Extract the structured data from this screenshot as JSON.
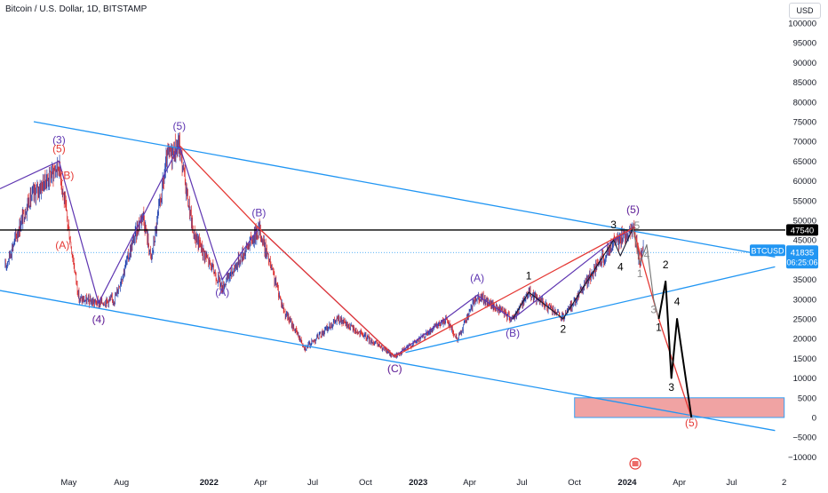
{
  "header": {
    "title": "Bitcoin / U.S. Dollar, 1D, BITSTAMP",
    "currency": "USD"
  },
  "colors": {
    "channel": "#2196f3",
    "red_wave": "#e53935",
    "purple_wave": "#5e35b1",
    "black": "#000000",
    "target_zone": "#ef9a9a",
    "candle_up": "#1e40af",
    "candle_down": "#dc2626",
    "label_bg": "#2196f3"
  },
  "chart_data": {
    "type": "line",
    "y_ticks": [
      "100000",
      "95000",
      "90000",
      "85000",
      "80000",
      "75000",
      "70000",
      "65000",
      "60000",
      "55000",
      "50000",
      "45000",
      "40000",
      "35000",
      "30000",
      "25000",
      "20000",
      "15000",
      "10000",
      "5000",
      "0",
      "−5000",
      "−10000"
    ],
    "x_ticks": [
      {
        "label": "May",
        "x": "2021-05-01",
        "bold": false
      },
      {
        "label": "Aug",
        "x": "2021-08-01",
        "bold": false
      },
      {
        "label": "2022",
        "x": "2022-01-01",
        "bold": true
      },
      {
        "label": "Apr",
        "x": "2022-04-01",
        "bold": false
      },
      {
        "label": "Jul",
        "x": "2022-07-01",
        "bold": false
      },
      {
        "label": "Oct",
        "x": "2022-10-01",
        "bold": false
      },
      {
        "label": "2023",
        "x": "2023-01-01",
        "bold": true
      },
      {
        "label": "Apr",
        "x": "2023-04-01",
        "bold": false
      },
      {
        "label": "Jul",
        "x": "2023-07-01",
        "bold": false
      },
      {
        "label": "Oct",
        "x": "2023-10-01",
        "bold": false
      },
      {
        "label": "2024",
        "x": "2024-01-01",
        "bold": true
      },
      {
        "label": "Apr",
        "x": "2024-04-01",
        "bold": false
      },
      {
        "label": "Jul",
        "x": "2024-07-01",
        "bold": false
      },
      {
        "label": "2",
        "x": "2024-10-01",
        "bold": false
      }
    ],
    "price_path": [
      [
        "2021-01-10",
        38000
      ],
      [
        "2021-02-20",
        55000
      ],
      [
        "2021-04-14",
        64000
      ],
      [
        "2021-05-19",
        30000
      ],
      [
        "2021-06-22",
        29000
      ],
      [
        "2021-07-20",
        30000
      ],
      [
        "2021-09-07",
        52000
      ],
      [
        "2021-09-22",
        40000
      ],
      [
        "2021-10-20",
        66000
      ],
      [
        "2021-11-10",
        69000
      ],
      [
        "2021-12-04",
        47000
      ],
      [
        "2022-01-24",
        33000
      ],
      [
        "2022-03-29",
        48000
      ],
      [
        "2022-05-12",
        27000
      ],
      [
        "2022-06-18",
        17600
      ],
      [
        "2022-08-14",
        25000
      ],
      [
        "2022-10-21",
        18500
      ],
      [
        "2022-11-21",
        15500
      ],
      [
        "2023-01-14",
        21000
      ],
      [
        "2023-02-20",
        25000
      ],
      [
        "2023-03-10",
        19600
      ],
      [
        "2023-04-14",
        31000
      ],
      [
        "2023-06-15",
        25000
      ],
      [
        "2023-07-13",
        31800
      ],
      [
        "2023-09-11",
        25000
      ],
      [
        "2023-10-24",
        35000
      ],
      [
        "2023-12-08",
        44000
      ],
      [
        "2024-01-11",
        48000
      ],
      [
        "2024-01-23",
        39000
      ],
      [
        "2024-01-29",
        43800
      ]
    ],
    "lines": {
      "channel_upper": [
        [
          "2021-03-01",
          75000
        ],
        [
          "2024-09-15",
          40700
        ]
      ],
      "channel_lower": [
        [
          "2020-12-20",
          32500
        ],
        [
          "2024-09-15",
          -3300
        ]
      ],
      "lower_trend": [
        [
          "2022-12-10",
          16500
        ],
        [
          "2024-09-15",
          38200
        ]
      ],
      "resistance": {
        "y": 47540
      },
      "red_wave": [
        [
          "2021-11-10",
          69000
        ],
        [
          "2022-03-29",
          48000
        ],
        [
          "2022-11-21",
          15500
        ],
        [
          "2024-01-11",
          48000
        ],
        [
          "2024-02-25",
          25000
        ],
        [
          "2024-04-22",
          0
        ]
      ],
      "purple_wave": [
        [
          "2021-01-01",
          58000
        ],
        [
          "2021-04-14",
          65000
        ],
        [
          "2021-06-22",
          29000
        ],
        [
          "2021-11-10",
          69000
        ],
        [
          "2022-01-24",
          35000
        ],
        [
          "2022-03-29",
          48000
        ],
        [
          "2022-11-21",
          15500
        ],
        [
          "2023-04-14",
          31000
        ],
        [
          "2023-06-15",
          25000
        ],
        [
          "2023-12-08",
          45000
        ],
        [
          "2024-01-11",
          48000
        ]
      ],
      "black_projection": [
        [
          "2024-02-25",
          25000
        ],
        [
          "2024-03-08",
          34500
        ],
        [
          "2024-03-18",
          10000
        ],
        [
          "2024-03-28",
          25000
        ],
        [
          "2024-04-22",
          0
        ]
      ],
      "black_small": [
        [
          "2023-06-15",
          25000
        ],
        [
          "2023-07-13",
          31800
        ],
        [
          "2023-09-11",
          25000
        ],
        [
          "2023-12-08",
          45000
        ],
        [
          "2023-12-20",
          41000
        ],
        [
          "2024-01-11",
          48000
        ]
      ],
      "gray_small": [
        [
          "2024-01-11",
          48000
        ],
        [
          "2024-01-23",
          39000
        ],
        [
          "2024-02-04",
          43800
        ],
        [
          "2024-02-16",
          30000
        ],
        [
          "2024-02-25",
          25000
        ]
      ]
    },
    "target_zone": {
      "x0": "2023-10-01",
      "x1": "2024-10-01",
      "y0": 0,
      "y1": 5000
    },
    "wave_labels": [
      {
        "text": "(3)",
        "x": "2021-04-14",
        "y": 69500,
        "color": "purple"
      },
      {
        "text": "(5)",
        "x": "2021-04-14",
        "y": 67200,
        "color": "red"
      },
      {
        "text": "(B)",
        "x": "2021-04-28",
        "y": 60500,
        "color": "red"
      },
      {
        "text": "(A)",
        "x": "2021-04-20",
        "y": 42800,
        "color": "red"
      },
      {
        "text": "(4)",
        "x": "2021-06-22",
        "y": 24000,
        "color": "red"
      },
      {
        "text": "(4)",
        "x": "2021-06-22",
        "y": 24000,
        "color": "purple"
      },
      {
        "text": "(5)",
        "x": "2021-11-10",
        "y": 73000,
        "color": "purple"
      },
      {
        "text": "(B)",
        "x": "2022-03-29",
        "y": 51000,
        "color": "purple"
      },
      {
        "text": "(A)",
        "x": "2022-01-24",
        "y": 30800,
        "color": "purple"
      },
      {
        "text": "(C)",
        "x": "2022-11-21",
        "y": 11500,
        "color": "red"
      },
      {
        "text": "(C)",
        "x": "2022-11-21",
        "y": 11500,
        "color": "purple"
      },
      {
        "text": "(A)",
        "x": "2023-04-14",
        "y": 34500,
        "color": "purple"
      },
      {
        "text": "(B)",
        "x": "2023-06-15",
        "y": 20500,
        "color": "purple"
      },
      {
        "text": "1",
        "x": "2023-07-13",
        "y": 35000,
        "color": "black"
      },
      {
        "text": "2",
        "x": "2023-09-11",
        "y": 21500,
        "color": "black"
      },
      {
        "text": "3",
        "x": "2023-12-08",
        "y": 48000,
        "color": "black"
      },
      {
        "text": "4",
        "x": "2023-12-20",
        "y": 37300,
        "color": "black"
      },
      {
        "text": "(5)",
        "x": "2024-01-11",
        "y": 51800,
        "color": "red"
      },
      {
        "text": "(5)",
        "x": "2024-01-11",
        "y": 51800,
        "color": "purple"
      },
      {
        "text": "5",
        "x": "2024-01-18",
        "y": 47800,
        "color": "gray"
      },
      {
        "text": "4",
        "x": "2024-02-04",
        "y": 40300,
        "color": "gray"
      },
      {
        "text": "1",
        "x": "2024-01-23",
        "y": 35600,
        "color": "gray"
      },
      {
        "text": "3",
        "x": "2024-02-16",
        "y": 26500,
        "color": "gray"
      },
      {
        "text": "1",
        "x": "2024-02-25",
        "y": 22000,
        "color": "black"
      },
      {
        "text": "2",
        "x": "2024-03-08",
        "y": 37800,
        "color": "black"
      },
      {
        "text": "4",
        "x": "2024-03-28",
        "y": 28500,
        "color": "black"
      },
      {
        "text": "3",
        "x": "2024-03-18",
        "y": 6800,
        "color": "black"
      },
      {
        "text": "(5)",
        "x": "2024-04-22",
        "y": -2300,
        "color": "red"
      }
    ],
    "price_labels": [
      {
        "text": "47540",
        "y": 47540,
        "kind": "line"
      },
      {
        "text": "BTCUSD",
        "kind": "symbol"
      },
      {
        "text": "41835",
        "kind": "price"
      },
      {
        "text": "06:25:06",
        "kind": "timer"
      }
    ],
    "current_price": 41835,
    "ylim": [
      -12000,
      103000
    ],
    "xlim": [
      "2021-01-01",
      "2024-10-03"
    ]
  }
}
